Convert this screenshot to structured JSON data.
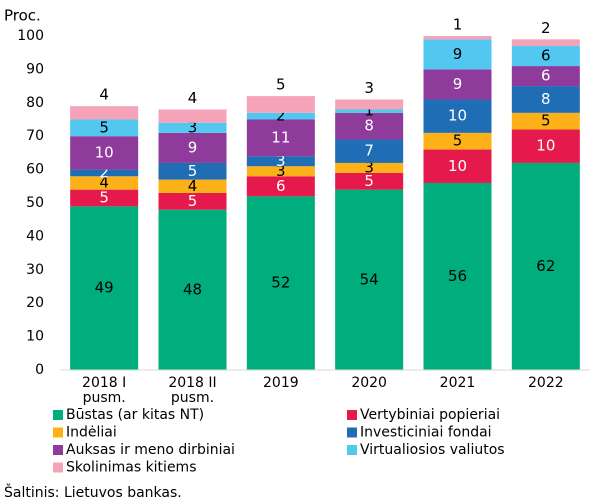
{
  "chart_data": {
    "type": "stacked_bar",
    "y_label": "Proc.",
    "source": "Šaltinis: Lietuvos bankas.",
    "categories": [
      "2018 I pusm.",
      "2018 II pusm.",
      "2019",
      "2020",
      "2021",
      "2022"
    ],
    "ylim": [
      0,
      100
    ],
    "yticks": [
      0,
      10,
      20,
      30,
      40,
      50,
      60,
      70,
      80,
      90,
      100
    ],
    "grid": false,
    "series": [
      {
        "name": "Būstas (ar kitas NT)",
        "color": "#00ad7c",
        "label_color": "#000000",
        "values": [
          49,
          48,
          52,
          54,
          56,
          62
        ]
      },
      {
        "name": "Vertybiniai popieriai",
        "color": "#e5194b",
        "label_color": "#ffffff",
        "values": [
          5,
          5,
          6,
          5,
          10,
          10
        ]
      },
      {
        "name": "Indėliai",
        "color": "#fbb117",
        "label_color": "#000000",
        "values": [
          4,
          4,
          3,
          3,
          5,
          5
        ]
      },
      {
        "name": "Investiciniai fondai",
        "color": "#1f6db5",
        "label_color": "#ffffff",
        "values": [
          2,
          5,
          3,
          7,
          10,
          8
        ]
      },
      {
        "name": "Auksas ir meno dirbiniai",
        "color": "#8e3b9c",
        "label_color": "#ffffff",
        "values": [
          10,
          9,
          11,
          8,
          9,
          6
        ]
      },
      {
        "name": "Virtualiosios valiutos",
        "color": "#52c8f0",
        "label_color": "#000000",
        "values": [
          5,
          3,
          2,
          1,
          9,
          6
        ]
      },
      {
        "name": "Skolinimas kitiems",
        "color": "#f4a3b8",
        "label_color": "#000000",
        "values": [
          4,
          4,
          5,
          3,
          1,
          2
        ]
      }
    ]
  }
}
